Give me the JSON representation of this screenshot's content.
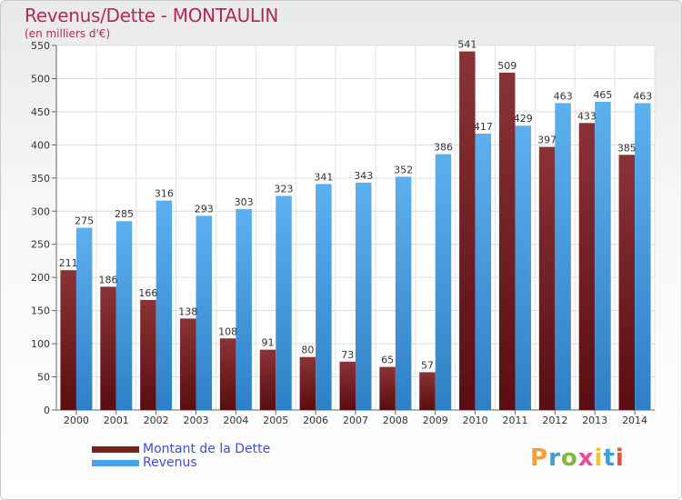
{
  "header": {
    "title": "Revenus/Dette - MONTAULIN",
    "subtitle": "(en milliers d'€)"
  },
  "legend": {
    "items": [
      {
        "label": "Montant de la Dette",
        "color": "#7a1f22"
      },
      {
        "label": "Revenus",
        "color": "#4aa3e8"
      }
    ]
  },
  "logo": {
    "letters": [
      "P",
      "r",
      "o",
      "x",
      "i",
      "t",
      "i"
    ],
    "colors": [
      "#f2a033",
      "#3aa0d8",
      "#7dbb3c",
      "#e84d9a",
      "#f2c230",
      "#3aa0d8",
      "#e8503a"
    ]
  },
  "chart_data": {
    "type": "bar",
    "title": "Revenus/Dette - MONTAULIN",
    "subtitle": "(en milliers d'€)",
    "categories": [
      "2000",
      "2001",
      "2002",
      "2003",
      "2004",
      "2005",
      "2006",
      "2007",
      "2008",
      "2009",
      "2010",
      "2011",
      "2012",
      "2013",
      "2014"
    ],
    "series": [
      {
        "name": "Montant de la Dette",
        "color": "#7a1f22",
        "values": [
          211,
          186,
          166,
          138,
          108,
          91,
          80,
          73,
          65,
          57,
          541,
          509,
          397,
          433,
          385
        ]
      },
      {
        "name": "Revenus",
        "color": "#4aa3e8",
        "values": [
          275,
          285,
          316,
          293,
          303,
          323,
          341,
          343,
          352,
          386,
          417,
          429,
          463,
          465,
          463
        ]
      }
    ],
    "ylim": [
      0,
      550
    ],
    "yticks": [
      0,
      50,
      100,
      150,
      200,
      250,
      300,
      350,
      400,
      450,
      500,
      550
    ],
    "grid": true,
    "legend_position": "bottom-left"
  }
}
